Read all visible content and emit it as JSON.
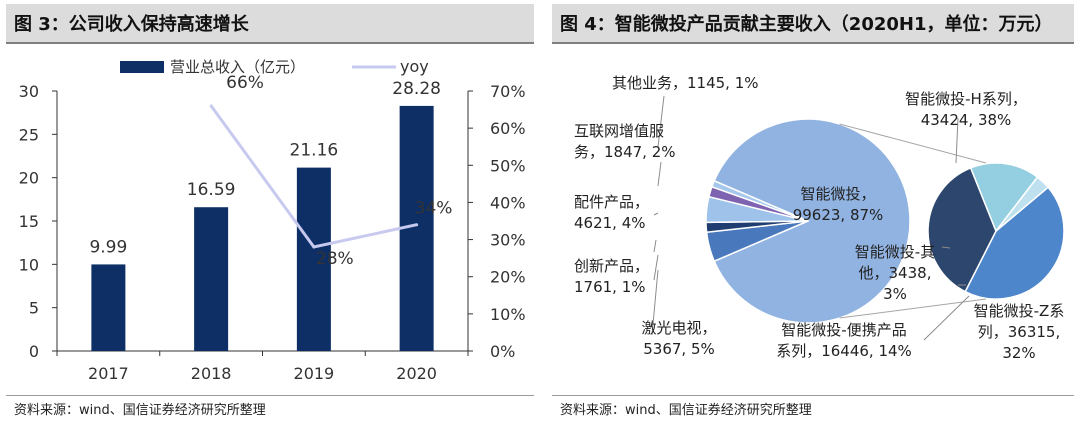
{
  "chart_data": [
    {
      "type": "bar",
      "title": "图 3：公司收入保持高速增长",
      "categories": [
        "2017",
        "2018",
        "2019",
        "2020"
      ],
      "series": [
        {
          "name": "营业总收入（亿元）",
          "type": "bar",
          "axis": "left",
          "values": [
            9.99,
            16.59,
            21.16,
            28.28
          ],
          "labels": [
            "9.99",
            "16.59",
            "21.16",
            "28.28"
          ]
        },
        {
          "name": "yoy",
          "type": "line",
          "axis": "right",
          "values": [
            null,
            66,
            28,
            34
          ],
          "labels": [
            "",
            "66%",
            "28%",
            "34%"
          ]
        }
      ],
      "ylim": [
        0,
        30
      ],
      "yticks": [
        "0",
        "5",
        "10",
        "15",
        "20",
        "25",
        "30"
      ],
      "y2lim": [
        0,
        70
      ],
      "y2ticks": [
        "0%",
        "10%",
        "20%",
        "30%",
        "40%",
        "50%",
        "60%",
        "70%"
      ],
      "legend": "top",
      "grid": false,
      "colors": {
        "bar": "#0d2f66",
        "line": "#c7c9ef",
        "axis": "#333333"
      },
      "source": "资料来源：wind、国信证券经济研究所整理"
    },
    {
      "type": "pie",
      "title": "图 4：智能微投产品贡献主要收入（2020H1，单位：万元）",
      "main_pie": {
        "slices": [
          {
            "name": "智能微投",
            "value": 99623,
            "label": "智能微投，\n99623, 87%",
            "color": "#91b3e1"
          },
          {
            "name": "激光电视",
            "value": 5367,
            "label": "激光电视，\n5367, 5%",
            "color": "#4a78bd"
          },
          {
            "name": "创新产品",
            "value": 1761,
            "label": "创新产品，\n1761, 1%",
            "color": "#1f3d70"
          },
          {
            "name": "配件产品",
            "value": 4621,
            "label": "配件产品，\n4621, 4%",
            "color": "#9ec2ea"
          },
          {
            "name": "互联网增值服务",
            "value": 1847,
            "label": "互联网增值服\n务，1847, 2%",
            "color": "#7e63b0"
          },
          {
            "name": "其他业务",
            "value": 1145,
            "label": "其他业务，1145, 1%",
            "color": "#a6c8ec"
          }
        ]
      },
      "sub_pie": {
        "slices": [
          {
            "name": "智能微投-H系列",
            "value": 43424,
            "label": "智能微投-H系列，\n43424, 38%",
            "color": "#4e86cc"
          },
          {
            "name": "智能微投-Z系列",
            "value": 36315,
            "label": "智能微投-Z系\n列，36315,\n32%",
            "color": "#2c466e"
          },
          {
            "name": "智能微投-便携产品系列",
            "value": 16446,
            "label": "智能微投-便携产品\n系列，16446, 14%",
            "color": "#93cfe0"
          },
          {
            "name": "智能微投-其他",
            "value": 3438,
            "label": "智能微投-其\n他，3438,\n3%",
            "color": "#bfe0ee"
          }
        ]
      },
      "source": "资料来源：wind、国信证券经济研究所整理"
    }
  ]
}
